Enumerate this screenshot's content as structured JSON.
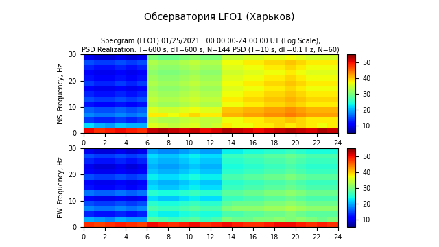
{
  "title": "Обсерватория LFO1 (Харьков)",
  "chart_data": [
    {
      "type": "heatmap",
      "title": "Specgram (LFO1) 01/25/2021   00:00:00-24:00:00 UT (Log Scale),\nPSD Realization: T=600 s, dT=600 s, N=144 PSD (T=10 s, dF=0.1 Hz, N=60)",
      "y_label": "NS_Frequency, Hz",
      "x": [
        0,
        1,
        2,
        3,
        4,
        5,
        6,
        7,
        8,
        9,
        10,
        11,
        12,
        13,
        14,
        15,
        16,
        17,
        18,
        19,
        20,
        21,
        22,
        23,
        24
      ],
      "y": [
        0,
        2,
        4,
        6,
        8,
        10,
        12,
        14,
        16,
        18,
        20,
        22,
        24,
        26,
        28,
        30
      ],
      "xlim": [
        0,
        24
      ],
      "ylim": [
        0,
        30
      ],
      "xticks": [
        0,
        2,
        4,
        6,
        8,
        10,
        12,
        14,
        16,
        18,
        20,
        22,
        24
      ],
      "yticks": [
        0,
        10,
        20,
        30
      ],
      "colorbar_range": [
        5,
        55
      ],
      "colorbar_ticks": [
        10,
        20,
        30,
        40,
        50
      ],
      "cells": [
        [
          50,
          48,
          49,
          50,
          49,
          48,
          52,
          53,
          52,
          51,
          52,
          50,
          51,
          53,
          52,
          51,
          50,
          51,
          52,
          53,
          52,
          51,
          53,
          52
        ],
        [
          22,
          20,
          19,
          21,
          20,
          20,
          36,
          35,
          34,
          35,
          36,
          34,
          35,
          38,
          37,
          37,
          38,
          38,
          39,
          38,
          39,
          38,
          37,
          38
        ],
        [
          14,
          13,
          13,
          14,
          13,
          14,
          34,
          33,
          33,
          34,
          35,
          34,
          34,
          37,
          37,
          38,
          38,
          39,
          39,
          40,
          39,
          38,
          38,
          38
        ],
        [
          18,
          17,
          17,
          18,
          17,
          18,
          38,
          38,
          37,
          38,
          39,
          38,
          38,
          41,
          41,
          42,
          42,
          43,
          43,
          44,
          43,
          42,
          42,
          42
        ],
        [
          16,
          15,
          15,
          16,
          15,
          16,
          36,
          35,
          35,
          36,
          37,
          36,
          36,
          40,
          40,
          41,
          41,
          42,
          42,
          43,
          42,
          41,
          41,
          41
        ],
        [
          12,
          11,
          11,
          12,
          11,
          12,
          33,
          32,
          32,
          33,
          34,
          33,
          33,
          37,
          37,
          38,
          38,
          39,
          39,
          40,
          39,
          38,
          38,
          38
        ],
        [
          15,
          14,
          14,
          15,
          14,
          15,
          34,
          33,
          33,
          34,
          35,
          34,
          34,
          38,
          38,
          39,
          39,
          40,
          40,
          41,
          40,
          39,
          39,
          39
        ],
        [
          13,
          12,
          12,
          13,
          12,
          13,
          33,
          32,
          32,
          33,
          34,
          33,
          33,
          37,
          37,
          38,
          38,
          39,
          39,
          40,
          39,
          38,
          38,
          38
        ],
        [
          11,
          10,
          10,
          11,
          10,
          11,
          32,
          31,
          31,
          32,
          33,
          32,
          32,
          36,
          36,
          37,
          37,
          38,
          38,
          39,
          38,
          37,
          37,
          37
        ],
        [
          14,
          13,
          13,
          14,
          13,
          14,
          33,
          32,
          32,
          33,
          34,
          33,
          33,
          37,
          37,
          38,
          38,
          39,
          39,
          40,
          39,
          38,
          38,
          38
        ],
        [
          12,
          11,
          11,
          12,
          11,
          12,
          32,
          31,
          31,
          32,
          33,
          32,
          32,
          36,
          36,
          37,
          37,
          38,
          38,
          39,
          38,
          37,
          37,
          37
        ],
        [
          11,
          10,
          10,
          11,
          10,
          11,
          31,
          30,
          30,
          31,
          32,
          31,
          31,
          35,
          35,
          36,
          36,
          37,
          37,
          38,
          37,
          36,
          36,
          36
        ],
        [
          13,
          12,
          12,
          13,
          12,
          13,
          32,
          31,
          31,
          32,
          33,
          32,
          32,
          36,
          36,
          37,
          37,
          38,
          38,
          39,
          38,
          37,
          37,
          37
        ],
        [
          15,
          14,
          14,
          15,
          14,
          15,
          33,
          32,
          32,
          33,
          34,
          33,
          33,
          37,
          37,
          38,
          38,
          39,
          39,
          40,
          39,
          38,
          38,
          38
        ],
        [
          10,
          9,
          9,
          10,
          9,
          10,
          30,
          29,
          29,
          30,
          31,
          30,
          30,
          34,
          34,
          35,
          35,
          36,
          36,
          37,
          36,
          35,
          35,
          35
        ]
      ]
    },
    {
      "type": "heatmap",
      "y_label": "EW_Frequency, Hz",
      "x": [
        0,
        1,
        2,
        3,
        4,
        5,
        6,
        7,
        8,
        9,
        10,
        11,
        12,
        13,
        14,
        15,
        16,
        17,
        18,
        19,
        20,
        21,
        22,
        23,
        24
      ],
      "y": [
        0,
        2,
        4,
        6,
        8,
        10,
        12,
        14,
        16,
        18,
        20,
        22,
        24,
        26,
        28,
        30
      ],
      "xlim": [
        0,
        24
      ],
      "ylim": [
        0,
        30
      ],
      "xticks": [
        0,
        2,
        4,
        6,
        8,
        10,
        12,
        14,
        16,
        18,
        20,
        22,
        24
      ],
      "yticks": [
        0,
        10,
        20,
        30
      ],
      "colorbar_range": [
        5,
        55
      ],
      "colorbar_ticks": [
        10,
        20,
        30,
        40,
        50
      ],
      "cells": [
        [
          48,
          47,
          48,
          49,
          48,
          47,
          50,
          49,
          48,
          49,
          50,
          48,
          49,
          50,
          49,
          48,
          48,
          49,
          50,
          50,
          49,
          48,
          49,
          48
        ],
        [
          20,
          19,
          18,
          20,
          19,
          19,
          28,
          27,
          26,
          27,
          28,
          26,
          27,
          30,
          29,
          29,
          30,
          30,
          31,
          30,
          31,
          30,
          29,
          30
        ],
        [
          13,
          12,
          12,
          13,
          12,
          13,
          24,
          23,
          23,
          24,
          25,
          24,
          24,
          27,
          27,
          28,
          28,
          29,
          29,
          30,
          29,
          28,
          28,
          28
        ],
        [
          18,
          17,
          17,
          18,
          17,
          18,
          27,
          26,
          26,
          27,
          28,
          27,
          27,
          30,
          31,
          31,
          31,
          32,
          32,
          33,
          32,
          31,
          31,
          31
        ],
        [
          15,
          14,
          14,
          15,
          14,
          15,
          25,
          24,
          24,
          25,
          26,
          25,
          25,
          28,
          29,
          29,
          29,
          30,
          30,
          31,
          30,
          29,
          29,
          29
        ],
        [
          11,
          10,
          10,
          11,
          10,
          11,
          22,
          21,
          21,
          22,
          23,
          22,
          22,
          26,
          26,
          27,
          27,
          28,
          28,
          29,
          28,
          27,
          27,
          27
        ],
        [
          17,
          16,
          16,
          17,
          16,
          17,
          25,
          24,
          24,
          25,
          26,
          25,
          25,
          28,
          28,
          29,
          29,
          30,
          30,
          31,
          30,
          29,
          29,
          29
        ],
        [
          12,
          11,
          11,
          12,
          11,
          12,
          22,
          21,
          21,
          22,
          23,
          22,
          22,
          26,
          26,
          27,
          27,
          28,
          28,
          29,
          28,
          27,
          27,
          27
        ],
        [
          11,
          10,
          10,
          11,
          10,
          11,
          21,
          20,
          20,
          21,
          22,
          21,
          21,
          25,
          25,
          26,
          26,
          27,
          27,
          28,
          27,
          26,
          26,
          26
        ],
        [
          15,
          14,
          14,
          15,
          14,
          15,
          23,
          22,
          22,
          23,
          24,
          23,
          23,
          27,
          27,
          28,
          28,
          29,
          29,
          30,
          29,
          28,
          28,
          28
        ],
        [
          11,
          10,
          10,
          11,
          10,
          11,
          21,
          20,
          20,
          21,
          22,
          21,
          21,
          25,
          25,
          26,
          26,
          27,
          27,
          28,
          27,
          26,
          26,
          26
        ],
        [
          10,
          9,
          9,
          10,
          9,
          10,
          20,
          19,
          19,
          20,
          21,
          20,
          20,
          24,
          24,
          25,
          25,
          26,
          26,
          27,
          26,
          25,
          25,
          25
        ],
        [
          13,
          12,
          12,
          13,
          12,
          13,
          21,
          20,
          20,
          21,
          22,
          21,
          21,
          25,
          25,
          26,
          26,
          27,
          27,
          28,
          27,
          26,
          26,
          26
        ],
        [
          15,
          14,
          14,
          15,
          14,
          15,
          22,
          21,
          21,
          22,
          23,
          22,
          22,
          26,
          26,
          27,
          27,
          28,
          28,
          29,
          28,
          27,
          27,
          27
        ],
        [
          10,
          9,
          9,
          10,
          9,
          10,
          19,
          18,
          18,
          19,
          20,
          19,
          19,
          23,
          23,
          24,
          24,
          25,
          25,
          26,
          25,
          24,
          24,
          24
        ]
      ]
    }
  ]
}
